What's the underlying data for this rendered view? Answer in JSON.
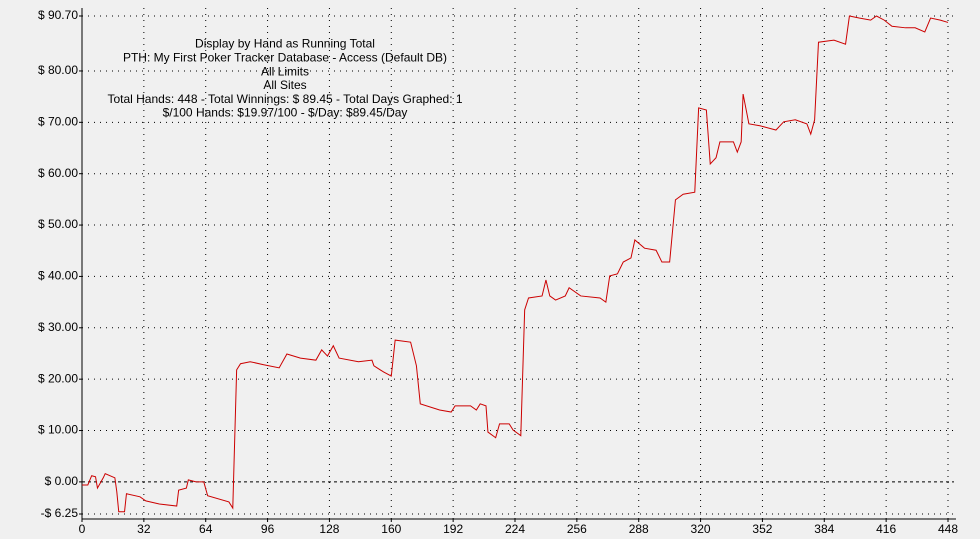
{
  "chart_data": {
    "type": "line",
    "annotations": [
      "Display by Hand as Running Total",
      "PTH: My First Poker Tracker Database - Access (Default DB)",
      "All Limits",
      "All Sites",
      "Total Hands: 448 - Total Winnings: $ 89.45 - Total Days Graphed: 1",
      "$/100 Hands: $19.97/100 - $/Day: $89.45/Day"
    ],
    "x": [
      0,
      3,
      5,
      7,
      8,
      11,
      12,
      17,
      18,
      19,
      22,
      23,
      30,
      33,
      40,
      49,
      50,
      54,
      55,
      59,
      63,
      65,
      76,
      78,
      80,
      82,
      87,
      94,
      102,
      106,
      113,
      121,
      124,
      127,
      130,
      133,
      143,
      150,
      151,
      156,
      160,
      162,
      170,
      173,
      175,
      185,
      191,
      193,
      201,
      204,
      206,
      209,
      210,
      214,
      216,
      221,
      223,
      227,
      229,
      231,
      238,
      240,
      242,
      245,
      250,
      252,
      258,
      268,
      271,
      273,
      277,
      280,
      284,
      286,
      291,
      297,
      300,
      304,
      307,
      311,
      317,
      319,
      323,
      325,
      328,
      330,
      337,
      339,
      341,
      342,
      345,
      351,
      359,
      363,
      369,
      375,
      377,
      379,
      381,
      389,
      395,
      397,
      402,
      408,
      411,
      415,
      419,
      426,
      431,
      436,
      439,
      444,
      448
    ],
    "series": [
      {
        "name": "Running Total",
        "color": "#cc0000",
        "values": [
          -0.6,
          -0.6,
          1.2,
          1,
          -1.2,
          0.8,
          1.6,
          0.8,
          -1.9,
          -5.8,
          -5.8,
          -2.3,
          -2.9,
          -3.7,
          -4.3,
          -4.7,
          -1.6,
          -1.2,
          0.4,
          0,
          0,
          -2.7,
          -3.9,
          -5.1,
          21.8,
          23,
          23.4,
          22.8,
          22.2,
          24.9,
          24.1,
          23.7,
          25.7,
          24.5,
          26.5,
          24.1,
          23.4,
          23.7,
          22.6,
          21.4,
          20.6,
          27.6,
          27.2,
          22.6,
          15.2,
          14,
          13.6,
          14.8,
          14.8,
          14,
          15.2,
          14.8,
          9.7,
          8.6,
          11.3,
          11.3,
          10.1,
          9,
          33.5,
          35.8,
          36.2,
          39.3,
          36.2,
          35.4,
          36.2,
          37.8,
          36.2,
          35.8,
          35,
          40.1,
          40.5,
          42.8,
          43.6,
          47.1,
          45.5,
          45.1,
          42.8,
          42.8,
          54.9,
          56,
          56.4,
          72.8,
          72.4,
          61.9,
          63.1,
          66.2,
          66.2,
          64.2,
          66.2,
          75.5,
          69.7,
          69.3,
          68.5,
          70.1,
          70.5,
          69.7,
          67.7,
          70.5,
          85.6,
          86,
          85.2,
          90.7,
          90.3,
          89.9,
          90.7,
          89.9,
          88.7,
          88.4,
          88.4,
          87.6,
          90.3,
          89.9,
          89.45
        ]
      }
    ],
    "xlim": [
      0,
      448
    ],
    "xticks": [
      0,
      32,
      64,
      96,
      128,
      160,
      192,
      224,
      256,
      288,
      320,
      352,
      384,
      416,
      448
    ],
    "ylim": [
      -6.25,
      90.7
    ],
    "yticks": [
      {
        "value": -6.25,
        "label": "-$ 6.25"
      },
      {
        "value": 0,
        "label": "$ 0.00"
      },
      {
        "value": 10,
        "label": "$ 10.00"
      },
      {
        "value": 20,
        "label": "$ 20.00"
      },
      {
        "value": 30,
        "label": "$ 30.00"
      },
      {
        "value": 40,
        "label": "$ 40.00"
      },
      {
        "value": 50,
        "label": "$ 50.00"
      },
      {
        "value": 60,
        "label": "$ 60.00"
      },
      {
        "value": 70,
        "label": "$ 70.00"
      },
      {
        "value": 80,
        "label": "$ 80.00"
      },
      {
        "value": 90.7,
        "label": "$ 90.70"
      }
    ],
    "grid": true,
    "zero_line": true
  }
}
